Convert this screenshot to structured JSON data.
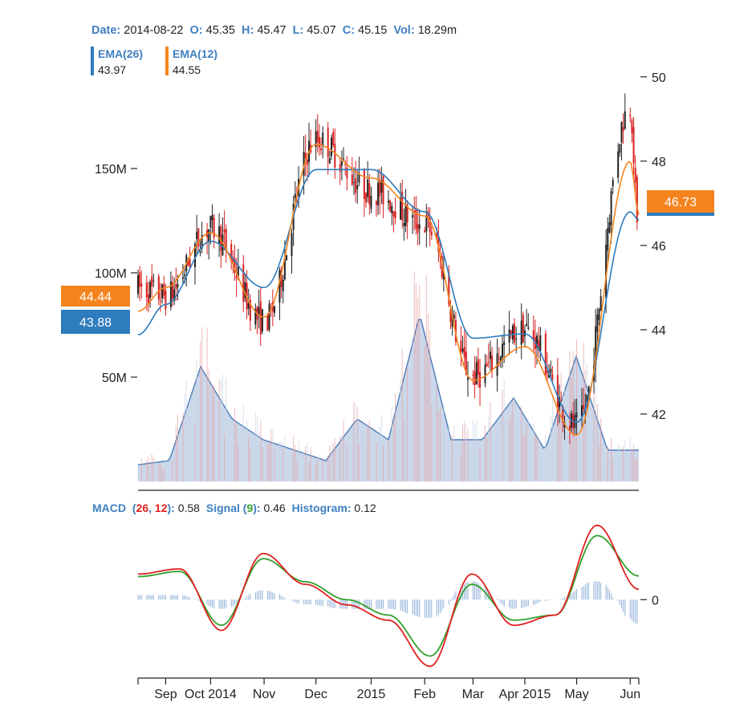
{
  "header": {
    "date_label": "Date:",
    "date": "2014-08-22",
    "open_label": "O:",
    "open": "45.35",
    "high_label": "H:",
    "high": "45.47",
    "low_label": "L:",
    "low": "45.07",
    "close_label": "C:",
    "close": "45.15",
    "vol_label": "Vol:",
    "vol": "18.29m"
  },
  "legend": [
    {
      "name": "EMA(26)",
      "value": "43.97",
      "color": "#2e7bbd"
    },
    {
      "name": "EMA(12)",
      "value": "44.55",
      "color": "#f5841f"
    }
  ],
  "price_labels": {
    "left_ema12": "44.44",
    "left_ema26": "43.88",
    "right_ema12": "46.73"
  },
  "macd_header": {
    "macd_label": "MACD",
    "macd_open": "(",
    "slow": "26",
    "comma": ", ",
    "fast": "12",
    "macd_close": "):",
    "macd_value": "0.58",
    "signal_label": "Signal",
    "signal_open": "(",
    "signal_period": "9",
    "signal_close": "):",
    "signal_value": "0.46",
    "hist_label": "Histogram:",
    "hist_value": "0.12"
  },
  "colors": {
    "up": "#222222",
    "down": "#d92020",
    "ema26": "#2e7bbd",
    "ema12": "#f5841f",
    "volume_fill": "#b9cbe3",
    "volume_line": "#4a7cb8",
    "macd": "#e02020",
    "signal": "#33a02c",
    "hist": "#8fb0d8",
    "label_blue": "#3f7fbf"
  },
  "chart_data": [
    {
      "type": "candlestick",
      "y_ticks": [
        "42",
        "44",
        "46",
        "48",
        "50"
      ],
      "ylim": [
        40.4,
        50.3
      ],
      "x_ticks": [
        "Sep",
        "Oct 2014",
        "Nov",
        "Dec",
        "2015",
        "Feb",
        "Mar",
        "Apr 2015",
        "May",
        "Jun"
      ],
      "anchor_dates": [
        "2014-08-20",
        "2014-09-05",
        "2014-10-01",
        "2014-11-01",
        "2014-12-01",
        "2015-01-02",
        "2015-02-02",
        "2015-03-02",
        "2015-04-01",
        "2015-05-01",
        "2015-06-01",
        "2015-06-06"
      ],
      "close_anchors": [
        45.0,
        44.8,
        46.4,
        44.2,
        48.5,
        47.3,
        46.5,
        42.9,
        44.0,
        41.7,
        49.3,
        46.1
      ],
      "ema12_anchors": [
        44.44,
        45.0,
        46.3,
        44.3,
        48.4,
        47.6,
        46.7,
        42.8,
        43.6,
        41.5,
        48.0,
        46.73
      ],
      "ema26_anchors": [
        43.88,
        44.6,
        46.1,
        45.0,
        47.8,
        47.8,
        46.8,
        43.8,
        43.9,
        41.8,
        46.8,
        46.6
      ]
    },
    {
      "type": "area",
      "series": "volume",
      "y_ticks": [
        "50M",
        "100M",
        "150M"
      ],
      "ylim": [
        0,
        200
      ],
      "volume_anchors": [
        8,
        10,
        55,
        30,
        20,
        15,
        10,
        30,
        20,
        80,
        20,
        20,
        40,
        15,
        60,
        15,
        15
      ]
    },
    {
      "type": "line",
      "y_ticks": [
        "0"
      ],
      "ylim": [
        -1.45,
        1.6
      ],
      "macd_anchors": [
        0.5,
        0.6,
        -0.6,
        0.9,
        0.3,
        -0.1,
        -0.4,
        -1.3,
        0.5,
        -0.5,
        -0.3,
        1.45,
        0.2
      ],
      "signal_anchors": [
        0.45,
        0.55,
        -0.5,
        0.8,
        0.35,
        0.0,
        -0.3,
        -1.1,
        0.3,
        -0.4,
        -0.3,
        1.25,
        0.46
      ]
    }
  ]
}
